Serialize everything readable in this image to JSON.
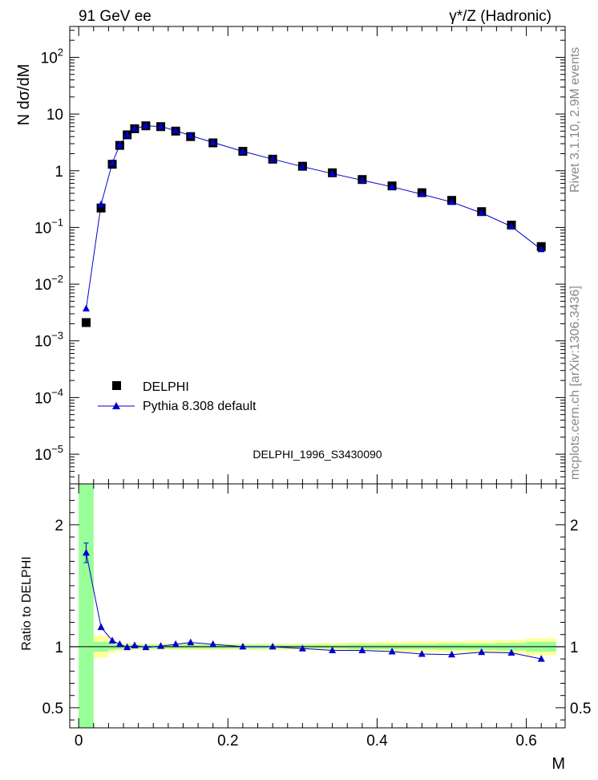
{
  "header": {
    "left": "91 GeV ee",
    "right": "γ*/Z (Hadronic)"
  },
  "side_labels": {
    "rivet": "Rivet 3.1.10,  2.9M events",
    "mcplots": "mcplots.cern.ch [arXiv:1306.3436]"
  },
  "watermark": "DELPHI_1996_S3430090",
  "chart_data": [
    {
      "type": "scatter",
      "panel": "main",
      "ylabel": "N dσ/dM",
      "xlabel": "",
      "log_y": true,
      "xlim": [
        -0.012,
        0.652
      ],
      "ylim": [
        3e-06,
        350
      ],
      "y_ticks": [
        {
          "value": 100,
          "base": "10",
          "exp": "2"
        },
        {
          "value": 10,
          "base": "10",
          "exp": ""
        },
        {
          "value": 1,
          "base": "1",
          "exp": ""
        },
        {
          "value": 0.1,
          "base": "10",
          "exp": "−1"
        },
        {
          "value": 0.01,
          "base": "10",
          "exp": "−2"
        },
        {
          "value": 0.001,
          "base": "10",
          "exp": "−3"
        },
        {
          "value": 0.0001,
          "base": "10",
          "exp": "−4"
        },
        {
          "value": 1e-05,
          "base": "10",
          "exp": "−5"
        }
      ],
      "legend": {
        "placement": "bottom-left",
        "entries": [
          "DELPHI",
          "Pythia 8.308 default"
        ]
      },
      "series": [
        {
          "name": "DELPHI",
          "color": "#000000",
          "marker": "square",
          "x": [
            0.01,
            0.03,
            0.045,
            0.055,
            0.065,
            0.075,
            0.09,
            0.11,
            0.13,
            0.15,
            0.18,
            0.22,
            0.26,
            0.3,
            0.34,
            0.38,
            0.42,
            0.46,
            0.5,
            0.54,
            0.58,
            0.62
          ],
          "y": [
            0.0021,
            0.22,
            1.3,
            2.8,
            4.3,
            5.5,
            6.2,
            6.0,
            5.0,
            4.0,
            3.1,
            2.2,
            1.6,
            1.2,
            0.92,
            0.7,
            0.54,
            0.41,
            0.3,
            0.19,
            0.11,
            0.046
          ]
        },
        {
          "name": "Pythia 8.308 default",
          "color": "#0000cc",
          "marker": "triangle",
          "x": [
            0.01,
            0.03,
            0.045,
            0.055,
            0.065,
            0.075,
            0.09,
            0.11,
            0.13,
            0.15,
            0.18,
            0.22,
            0.26,
            0.3,
            0.34,
            0.38,
            0.42,
            0.46,
            0.5,
            0.54,
            0.58,
            0.62
          ],
          "y": [
            0.0037,
            0.255,
            1.37,
            2.86,
            4.28,
            5.55,
            6.19,
            6.03,
            5.1,
            4.16,
            3.16,
            2.2,
            1.6,
            1.18,
            0.89,
            0.68,
            0.52,
            0.385,
            0.28,
            0.18,
            0.104,
            0.041
          ]
        }
      ]
    },
    {
      "type": "line",
      "panel": "ratio",
      "ylabel": "Ratio to DELPHI",
      "xlabel": "M",
      "xlim": [
        -0.012,
        0.652
      ],
      "ylim": [
        0.335,
        2.335
      ],
      "x_ticks": [
        {
          "value": 0,
          "label": "0"
        },
        {
          "value": 0.2,
          "label": "0.2"
        },
        {
          "value": 0.4,
          "label": "0.4"
        },
        {
          "value": 0.6,
          "label": "0.6"
        }
      ],
      "y_ticks": [
        {
          "value": 2,
          "label": "2"
        },
        {
          "value": 1,
          "label": "1"
        },
        {
          "value": 0.5,
          "label": "0.5"
        }
      ],
      "bands": {
        "edges": [
          0.0,
          0.02,
          0.04,
          0.05,
          0.06,
          0.07,
          0.08,
          0.1,
          0.12,
          0.14,
          0.16,
          0.2,
          0.24,
          0.28,
          0.32,
          0.36,
          0.4,
          0.44,
          0.48,
          0.52,
          0.56,
          0.6,
          0.64
        ],
        "yellow_lo": [
          0.335,
          0.91,
          0.95,
          0.965,
          0.97,
          0.975,
          0.975,
          0.975,
          0.975,
          0.975,
          0.975,
          0.975,
          0.975,
          0.975,
          0.97,
          0.965,
          0.96,
          0.955,
          0.955,
          0.95,
          0.945,
          0.93
        ],
        "yellow_hi": [
          2.335,
          1.09,
          1.05,
          1.035,
          1.03,
          1.025,
          1.025,
          1.025,
          1.025,
          1.025,
          1.025,
          1.025,
          1.025,
          1.025,
          1.03,
          1.035,
          1.04,
          1.045,
          1.045,
          1.05,
          1.055,
          1.07
        ],
        "green_lo": [
          0.335,
          0.96,
          0.975,
          0.98,
          0.985,
          0.985,
          0.985,
          0.985,
          0.985,
          0.985,
          0.985,
          0.985,
          0.985,
          0.985,
          0.985,
          0.98,
          0.98,
          0.98,
          0.975,
          0.975,
          0.97,
          0.96
        ],
        "green_hi": [
          2.335,
          1.04,
          1.025,
          1.02,
          1.015,
          1.015,
          1.015,
          1.015,
          1.015,
          1.015,
          1.015,
          1.015,
          1.015,
          1.015,
          1.015,
          1.02,
          1.02,
          1.02,
          1.025,
          1.025,
          1.03,
          1.04
        ]
      },
      "series": [
        {
          "name": "Pythia 8.308 default",
          "color": "#0000cc",
          "x": [
            0.01,
            0.03,
            0.045,
            0.055,
            0.065,
            0.075,
            0.09,
            0.11,
            0.13,
            0.15,
            0.18,
            0.22,
            0.26,
            0.3,
            0.34,
            0.38,
            0.42,
            0.46,
            0.5,
            0.54,
            0.58,
            0.62
          ],
          "y": [
            1.77,
            1.16,
            1.05,
            1.02,
            0.995,
            1.01,
            0.995,
            1.005,
            1.02,
            1.035,
            1.02,
            1.0,
            1.0,
            0.985,
            0.97,
            0.97,
            0.96,
            0.94,
            0.935,
            0.955,
            0.95,
            0.9
          ],
          "err": [
            0.08,
            0,
            0,
            0,
            0,
            0,
            0,
            0,
            0,
            0,
            0,
            0,
            0,
            0,
            0,
            0,
            0,
            0,
            0,
            0,
            0,
            0
          ]
        }
      ]
    }
  ]
}
